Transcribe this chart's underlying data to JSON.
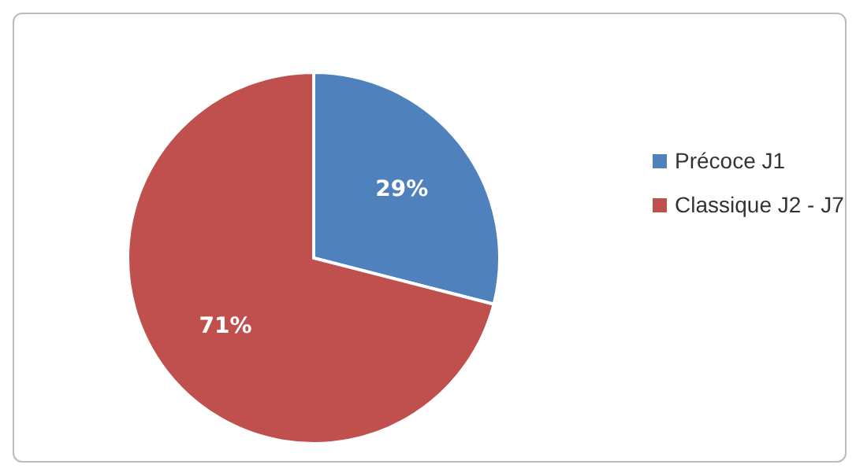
{
  "chart_data": {
    "type": "pie",
    "categories": [
      "Précoce J1",
      "Classique J2 - J7"
    ],
    "values": [
      29,
      71
    ],
    "colors": [
      "#4f81bd",
      "#c0504d"
    ],
    "value_labels": [
      "29%",
      "71%"
    ],
    "legend": "right"
  }
}
